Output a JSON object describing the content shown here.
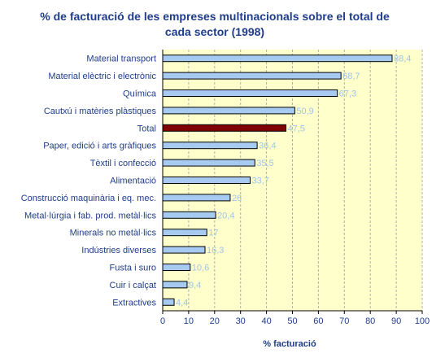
{
  "chart_data": {
    "type": "bar",
    "orientation": "horizontal",
    "title_lines": [
      "% de facturació de les empreses multinacionals sobre el total de",
      "cada sector (1998)"
    ],
    "xlabel": "% facturació",
    "ylabel": "",
    "xlim": [
      0,
      100
    ],
    "xticks": [
      0,
      10,
      20,
      30,
      40,
      50,
      60,
      70,
      80,
      90,
      100
    ],
    "grid": "vertical dashed",
    "categories": [
      "Material transport",
      "Material elèctric i electrònic",
      "Química",
      "Cautxú i matèries plàstiques",
      "Total",
      "Paper, edició i arts gràfiques",
      "Tèxtil i confecció",
      "Alimentació",
      "Construcció maquinària i eq. mec.",
      "Metal·lúrgia i fab. prod. metàl·lics",
      "Minerals no metàl·lics",
      "Indústries diverses",
      "Fusta i suro",
      "Cuir i calçat",
      "Extractives"
    ],
    "values": [
      88.4,
      68.7,
      67.3,
      50.9,
      47.5,
      36.4,
      35.5,
      33.7,
      26,
      20.4,
      17,
      16.3,
      10.6,
      9.4,
      4.4
    ],
    "value_labels": [
      "88,4",
      "68,7",
      "67,3",
      "50,9",
      "47,5",
      "36,4",
      "35,5",
      "33,7",
      "26",
      "20,4",
      "17",
      "16,3",
      "10,6",
      "9,4",
      "4,4"
    ],
    "colors": {
      "bar": "#a6caf0",
      "highlight_bar": "#800000",
      "plot_background": "#ffffcc",
      "text": "#1f3d8a",
      "value_label": "#9ec6e6"
    },
    "highlight_category": "Total"
  }
}
